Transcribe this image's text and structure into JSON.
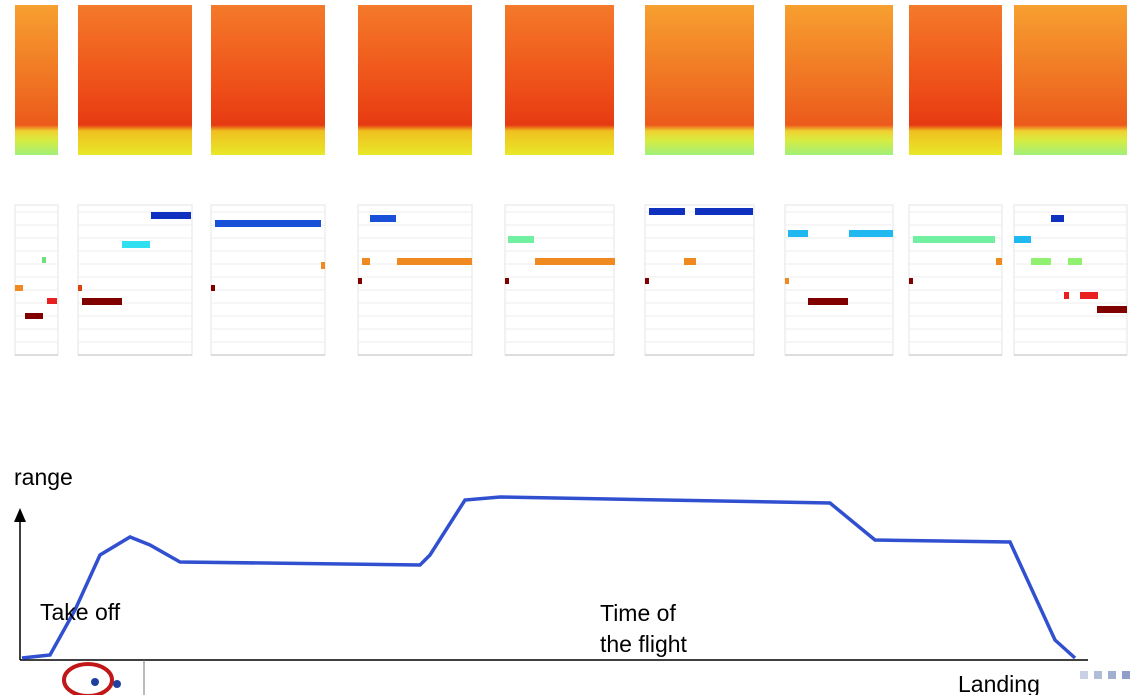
{
  "axis_label": "range",
  "annotations": {
    "take_off": "Take off",
    "time_of_flight": [
      "Time of",
      "the flight"
    ],
    "landing": "Landing"
  }
}
